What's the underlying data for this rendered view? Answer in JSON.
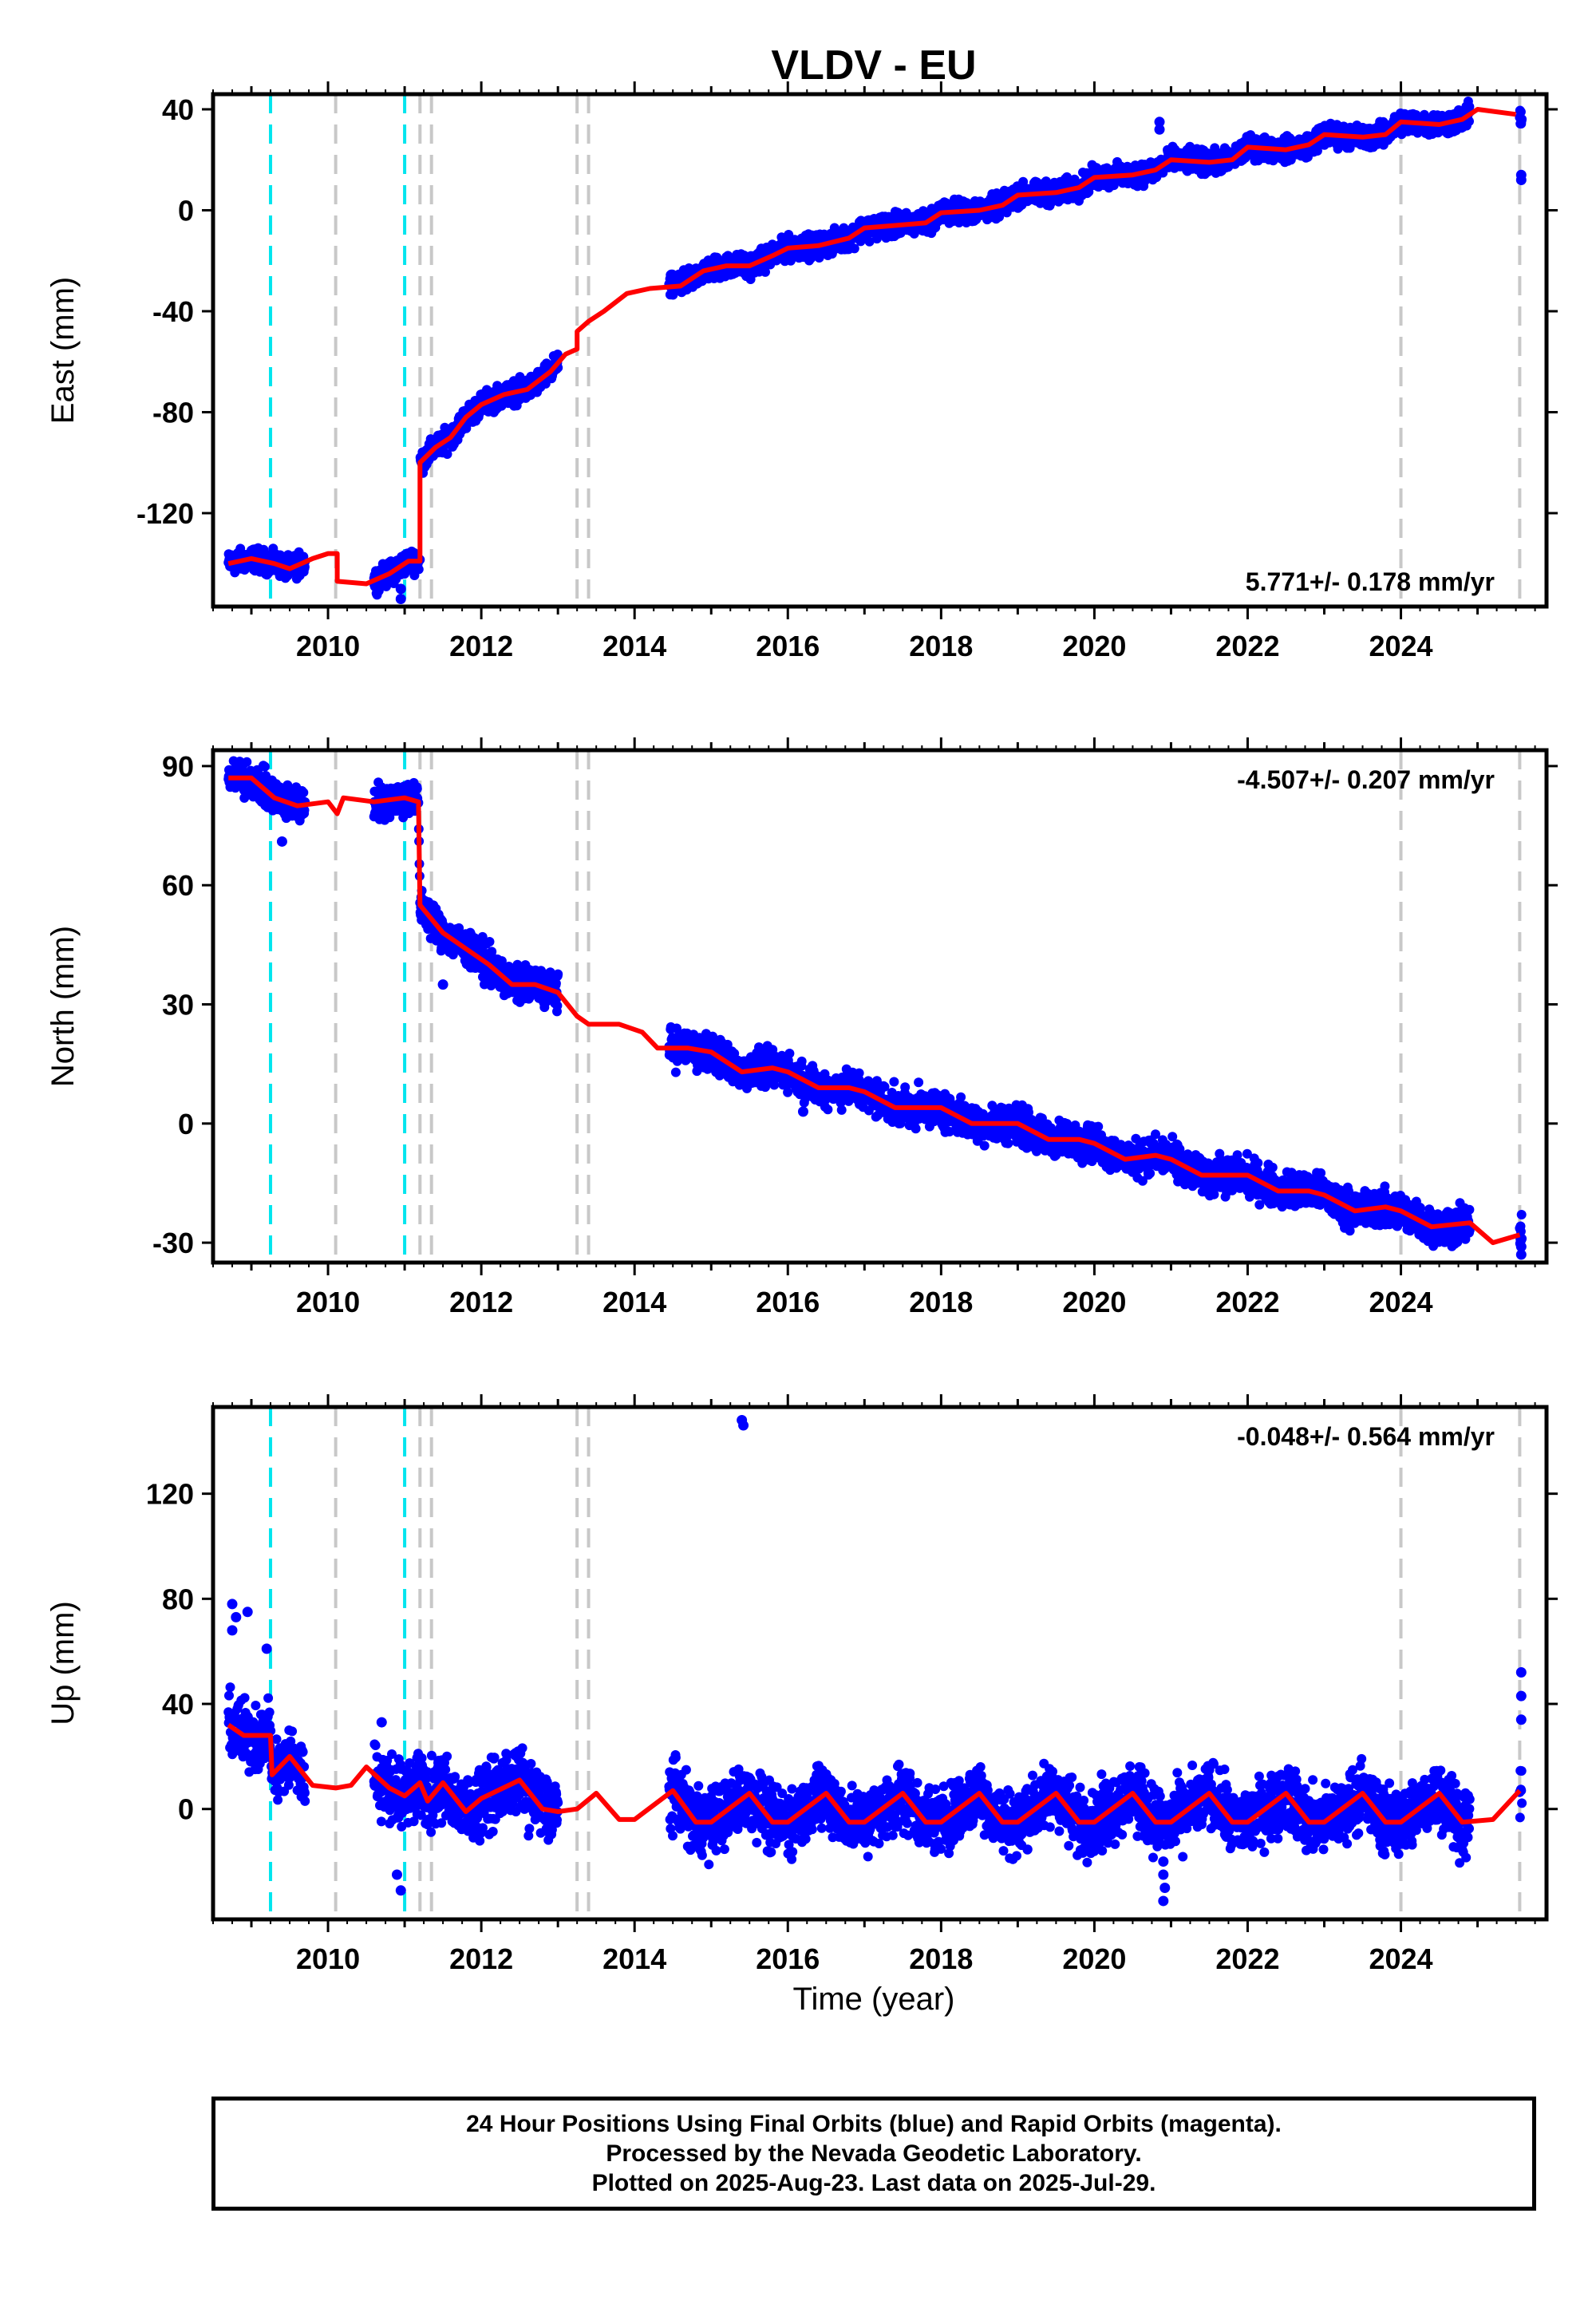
{
  "title": "VLDV - EU",
  "xlabel": "Time (year)",
  "note_lines": [
    "24 Hour Positions Using Final Orbits (blue) and Rapid Orbits (magenta).",
    "Processed by the Nevada Geodetic Laboratory.",
    "Plotted on 2025-Aug-23. Last data on 2025-Jul-29."
  ],
  "colors": {
    "final": "#0000ff",
    "model": "#ff0000",
    "eq_line": "#00e5ee",
    "equip_line": "#c8c8c8"
  },
  "chart_data": [
    {
      "type": "scatter",
      "component": "East",
      "ylabel": "East (mm)",
      "rate_text": "5.771+/- 0.178 mm/yr",
      "xlim": [
        2008.5,
        2025.9
      ],
      "ylim": [
        -157,
        46
      ],
      "yticks": [
        40,
        0,
        -40,
        -80,
        -120
      ],
      "xticks": [
        2010,
        2012,
        2014,
        2016,
        2018,
        2020,
        2022,
        2024
      ],
      "cyan_lines": [
        2009.25,
        2011.0
      ],
      "gray_lines": [
        2010.1,
        2011.2,
        2011.35,
        2013.25,
        2013.4,
        2024.0,
        2025.55
      ],
      "data_segments": [
        [
          2008.7,
          2009.7
        ],
        [
          2010.6,
          2013.0
        ],
        [
          2014.45,
          2024.9
        ],
        [
          2025.55,
          2025.58
        ]
      ],
      "model": [
        [
          2008.7,
          -140
        ],
        [
          2009.0,
          -138
        ],
        [
          2009.3,
          -140
        ],
        [
          2009.5,
          -142
        ],
        [
          2009.8,
          -138
        ],
        [
          2010.0,
          -136
        ],
        [
          2010.12,
          -136
        ],
        [
          2010.12,
          -147
        ],
        [
          2010.5,
          -148
        ],
        [
          2010.8,
          -144
        ],
        [
          2011.05,
          -139
        ],
        [
          2011.2,
          -139
        ],
        [
          2011.2,
          -100
        ],
        [
          2011.4,
          -94
        ],
        [
          2011.6,
          -90
        ],
        [
          2011.8,
          -82
        ],
        [
          2012.0,
          -77
        ],
        [
          2012.3,
          -73
        ],
        [
          2012.6,
          -71
        ],
        [
          2012.9,
          -64
        ],
        [
          2013.1,
          -57
        ],
        [
          2013.25,
          -55
        ],
        [
          2013.25,
          -48
        ],
        [
          2013.4,
          -44
        ],
        [
          2013.6,
          -40
        ],
        [
          2013.9,
          -33
        ],
        [
          2014.2,
          -31
        ],
        [
          2014.6,
          -30
        ],
        [
          2014.9,
          -24
        ],
        [
          2015.2,
          -22
        ],
        [
          2015.5,
          -22
        ],
        [
          2015.8,
          -18
        ],
        [
          2016.0,
          -15
        ],
        [
          2016.4,
          -14
        ],
        [
          2016.8,
          -11
        ],
        [
          2017.0,
          -7
        ],
        [
          2017.4,
          -6
        ],
        [
          2017.8,
          -5
        ],
        [
          2018.0,
          -1
        ],
        [
          2018.5,
          0
        ],
        [
          2018.8,
          2
        ],
        [
          2019.0,
          6
        ],
        [
          2019.5,
          7
        ],
        [
          2019.8,
          9
        ],
        [
          2020.0,
          13
        ],
        [
          2020.5,
          14
        ],
        [
          2020.8,
          16
        ],
        [
          2021.0,
          20
        ],
        [
          2021.5,
          19
        ],
        [
          2021.8,
          20
        ],
        [
          2022.0,
          25
        ],
        [
          2022.5,
          24
        ],
        [
          2022.8,
          26
        ],
        [
          2023.0,
          30
        ],
        [
          2023.5,
          29
        ],
        [
          2023.8,
          30
        ],
        [
          2024.0,
          35
        ],
        [
          2024.5,
          34
        ],
        [
          2024.8,
          36
        ],
        [
          2025.0,
          40
        ],
        [
          2025.5,
          38
        ]
      ],
      "outliers": [
        [
          2020.85,
          35
        ],
        [
          2020.85,
          32
        ],
        [
          2025.57,
          14
        ],
        [
          2025.57,
          12
        ],
        [
          2010.95,
          -150
        ],
        [
          2010.95,
          -154
        ]
      ]
    },
    {
      "type": "scatter",
      "component": "North",
      "ylabel": "North (mm)",
      "rate_text": "-4.507+/- 0.207 mm/yr",
      "xlim": [
        2008.5,
        2025.9
      ],
      "ylim": [
        -35,
        94
      ],
      "yticks": [
        90,
        60,
        30,
        0,
        -30
      ],
      "xticks": [
        2010,
        2012,
        2014,
        2016,
        2018,
        2020,
        2022,
        2024
      ],
      "cyan_lines": [
        2009.25,
        2011.0
      ],
      "gray_lines": [
        2010.1,
        2011.2,
        2011.35,
        2013.25,
        2013.4,
        2024.0,
        2025.55
      ],
      "data_segments": [
        [
          2008.7,
          2009.7
        ],
        [
          2010.6,
          2013.0
        ],
        [
          2014.45,
          2024.9
        ],
        [
          2025.55,
          2025.58
        ]
      ],
      "model": [
        [
          2008.7,
          87
        ],
        [
          2009.0,
          87
        ],
        [
          2009.3,
          82
        ],
        [
          2009.6,
          80
        ],
        [
          2010.0,
          81
        ],
        [
          2010.12,
          78
        ],
        [
          2010.2,
          82
        ],
        [
          2010.6,
          81
        ],
        [
          2011.0,
          82
        ],
        [
          2011.18,
          81
        ],
        [
          2011.2,
          55
        ],
        [
          2011.5,
          48
        ],
        [
          2011.8,
          44
        ],
        [
          2012.1,
          40
        ],
        [
          2012.4,
          35
        ],
        [
          2012.7,
          35
        ],
        [
          2013.0,
          33
        ],
        [
          2013.25,
          27
        ],
        [
          2013.4,
          25
        ],
        [
          2013.8,
          25
        ],
        [
          2014.1,
          23
        ],
        [
          2014.3,
          19
        ],
        [
          2014.7,
          19
        ],
        [
          2015.0,
          18
        ],
        [
          2015.4,
          13
        ],
        [
          2015.8,
          14
        ],
        [
          2016.0,
          13
        ],
        [
          2016.4,
          9
        ],
        [
          2016.8,
          9
        ],
        [
          2017.0,
          8
        ],
        [
          2017.4,
          4
        ],
        [
          2017.8,
          4
        ],
        [
          2018.0,
          4
        ],
        [
          2018.4,
          0
        ],
        [
          2018.8,
          0
        ],
        [
          2019.0,
          0
        ],
        [
          2019.4,
          -4
        ],
        [
          2019.8,
          -4
        ],
        [
          2020.0,
          -5
        ],
        [
          2020.4,
          -9
        ],
        [
          2020.8,
          -8
        ],
        [
          2021.0,
          -9
        ],
        [
          2021.4,
          -13
        ],
        [
          2021.8,
          -13
        ],
        [
          2022.0,
          -13
        ],
        [
          2022.4,
          -17
        ],
        [
          2022.8,
          -17
        ],
        [
          2023.0,
          -18
        ],
        [
          2023.4,
          -22
        ],
        [
          2023.8,
          -21
        ],
        [
          2024.0,
          -22
        ],
        [
          2024.4,
          -26
        ],
        [
          2024.9,
          -25
        ],
        [
          2025.2,
          -30
        ],
        [
          2025.55,
          -28
        ]
      ],
      "outliers": [
        [
          2009.4,
          71
        ],
        [
          2011.5,
          35
        ],
        [
          2016.2,
          3
        ],
        [
          2025.57,
          -31
        ],
        [
          2025.57,
          -33
        ]
      ]
    },
    {
      "type": "scatter",
      "component": "Up",
      "ylabel": "Up (mm)",
      "rate_text": "-0.048+/- 0.564 mm/yr",
      "xlim": [
        2008.5,
        2025.9
      ],
      "ylim": [
        -42,
        153
      ],
      "yticks": [
        120,
        80,
        40,
        0
      ],
      "xticks": [
        2010,
        2012,
        2014,
        2016,
        2018,
        2020,
        2022,
        2024
      ],
      "cyan_lines": [
        2009.25,
        2011.0
      ],
      "gray_lines": [
        2010.1,
        2011.2,
        2011.35,
        2013.25,
        2013.4,
        2024.0,
        2025.55
      ],
      "data_segments": [
        [
          2008.7,
          2009.7
        ],
        [
          2010.6,
          2013.0
        ],
        [
          2014.45,
          2024.9
        ],
        [
          2025.55,
          2025.58
        ]
      ],
      "model": [
        [
          2008.7,
          32
        ],
        [
          2008.9,
          28
        ],
        [
          2009.2,
          28
        ],
        [
          2009.25,
          28
        ],
        [
          2009.27,
          13
        ],
        [
          2009.5,
          20
        ],
        [
          2009.8,
          9
        ],
        [
          2010.1,
          8
        ],
        [
          2010.3,
          9
        ],
        [
          2010.5,
          16
        ],
        [
          2010.8,
          8
        ],
        [
          2011.0,
          5
        ],
        [
          2011.2,
          10
        ],
        [
          2011.3,
          3
        ],
        [
          2011.5,
          10
        ],
        [
          2011.8,
          -1
        ],
        [
          2012.0,
          4
        ],
        [
          2012.5,
          11
        ],
        [
          2012.8,
          0
        ],
        [
          2013.0,
          -1
        ],
        [
          2013.25,
          0
        ],
        [
          2013.5,
          6
        ],
        [
          2013.8,
          -4
        ],
        [
          2014.0,
          -4
        ],
        [
          2014.5,
          7
        ],
        [
          2014.8,
          -5
        ],
        [
          2015.0,
          -5
        ],
        [
          2015.5,
          6
        ],
        [
          2015.8,
          -5
        ],
        [
          2016.0,
          -5
        ],
        [
          2016.5,
          6
        ],
        [
          2016.8,
          -5
        ],
        [
          2017.0,
          -5
        ],
        [
          2017.5,
          6
        ],
        [
          2017.8,
          -5
        ],
        [
          2018.0,
          -5
        ],
        [
          2018.5,
          6
        ],
        [
          2018.8,
          -5
        ],
        [
          2019.0,
          -5
        ],
        [
          2019.5,
          6
        ],
        [
          2019.8,
          -5
        ],
        [
          2020.0,
          -5
        ],
        [
          2020.5,
          6
        ],
        [
          2020.8,
          -5
        ],
        [
          2021.0,
          -5
        ],
        [
          2021.5,
          6
        ],
        [
          2021.8,
          -5
        ],
        [
          2022.0,
          -5
        ],
        [
          2022.5,
          6
        ],
        [
          2022.8,
          -5
        ],
        [
          2023.0,
          -5
        ],
        [
          2023.5,
          6
        ],
        [
          2023.8,
          -5
        ],
        [
          2024.0,
          -5
        ],
        [
          2024.5,
          6
        ],
        [
          2024.8,
          -5
        ],
        [
          2025.2,
          -4
        ],
        [
          2025.55,
          7
        ]
      ],
      "outliers": [
        [
          2008.75,
          78
        ],
        [
          2008.8,
          73
        ],
        [
          2008.75,
          68
        ],
        [
          2008.95,
          75
        ],
        [
          2009.2,
          61
        ],
        [
          2010.7,
          33
        ],
        [
          2010.95,
          -31
        ],
        [
          2010.9,
          -25
        ],
        [
          2015.4,
          148
        ],
        [
          2015.42,
          146
        ],
        [
          2020.9,
          -20
        ],
        [
          2020.9,
          -25
        ],
        [
          2020.92,
          -30
        ],
        [
          2020.9,
          -35
        ],
        [
          2025.57,
          52
        ],
        [
          2025.57,
          43
        ],
        [
          2025.57,
          34
        ]
      ]
    }
  ]
}
